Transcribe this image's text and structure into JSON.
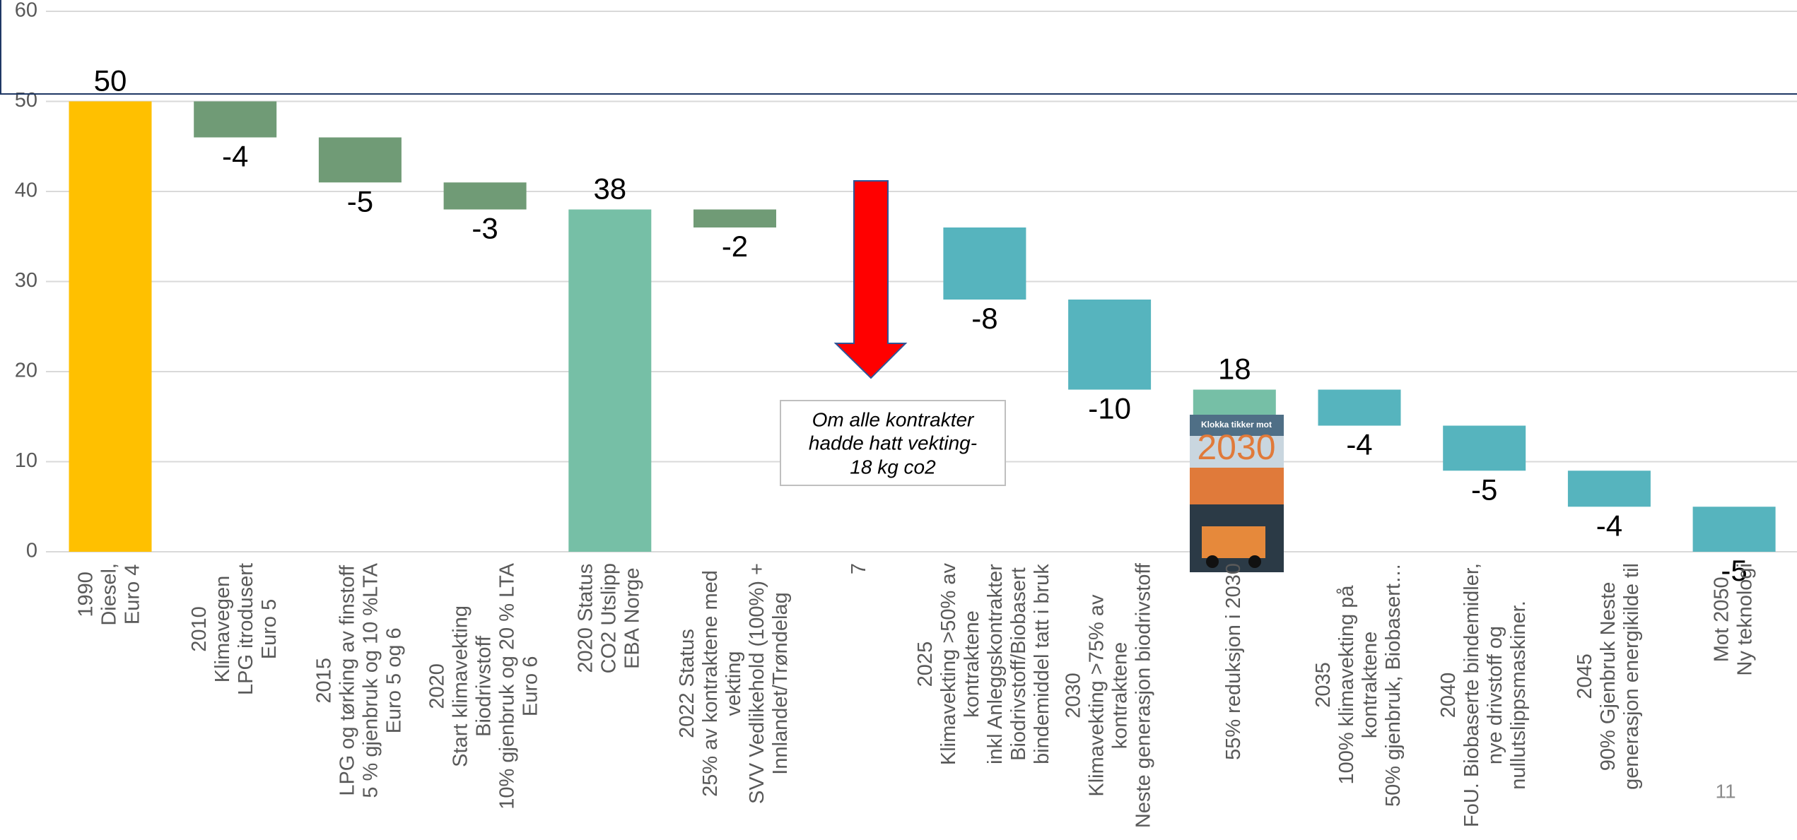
{
  "chart_data": {
    "type": "waterfall",
    "categories": [
      [
        "1990",
        "Diesel,",
        "Euro 4"
      ],
      [
        "2010",
        "Klimavegen",
        "LPG itrodusert",
        "Euro 5"
      ],
      [
        "2015",
        "LPG og tørking av finstoff",
        "5 % gjenbruk og 10 %LTA",
        "Euro 5 og 6"
      ],
      [
        "2020",
        "Start klimavekting",
        "Biodrivstoff",
        "10% gjenbruk og 20 % LTA",
        "Euro 6"
      ],
      [
        "2020 Status",
        "CO2 Utslipp",
        "EBA Norge"
      ],
      [
        "2022 Status",
        "25% av kontraktene med",
        "vekting",
        "SVV Vedlikehold (100%)  +",
        "Innlandet/Trøndelag"
      ],
      [
        "7"
      ],
      [
        "2025",
        "Klimavekting >50% av",
        "kontraktene",
        "inkl Anleggskontrakter",
        "Biodrivstoff/Biobasert",
        "bindemiddel  tatt i bruk"
      ],
      [
        "2030",
        "Klimavekting >75% av",
        "kontraktene",
        "Neste generasjon biodrivstoff"
      ],
      [
        "55% reduksjon i 2030"
      ],
      [
        "2035",
        "100% klimavekting på",
        "kontraktene",
        "50% gjenbruk, Biobasert…"
      ],
      [
        "2040",
        "FoU. Biobaserte bindemidler,",
        "nye drivstoff og",
        "nullutslippsmaskiner."
      ],
      [
        "2045",
        "90% Gjenbruk Neste",
        "generasjon energikilde til"
      ],
      [
        "Mot 2050",
        "Ny teknologi"
      ]
    ],
    "values": [
      50,
      -4,
      -5,
      -3,
      38,
      -2,
      null,
      -8,
      -10,
      18,
      -4,
      -5,
      -4,
      -5
    ],
    "is_total": [
      true,
      false,
      false,
      false,
      true,
      false,
      false,
      false,
      false,
      true,
      false,
      false,
      false,
      false
    ],
    "colors": [
      "#FFC000",
      "#709B76",
      "#709B76",
      "#709B76",
      "#76BFA6",
      "#709B76",
      null,
      "#56B4BE",
      "#56B4BE",
      "#76BFA6",
      "#56B4BE",
      "#56B4BE",
      "#56B4BE",
      "#56B4BE"
    ],
    "ylim": [
      0,
      60
    ],
    "yticks": [
      0,
      10,
      20,
      30,
      40,
      50,
      60
    ],
    "grid": true,
    "annotation": [
      "Om alle kontrakter",
      "hadde hatt vekting-",
      "18 kg co2"
    ],
    "cover": {
      "title": "Klokka tikker mot",
      "year": "2030"
    },
    "page_number": "11"
  }
}
